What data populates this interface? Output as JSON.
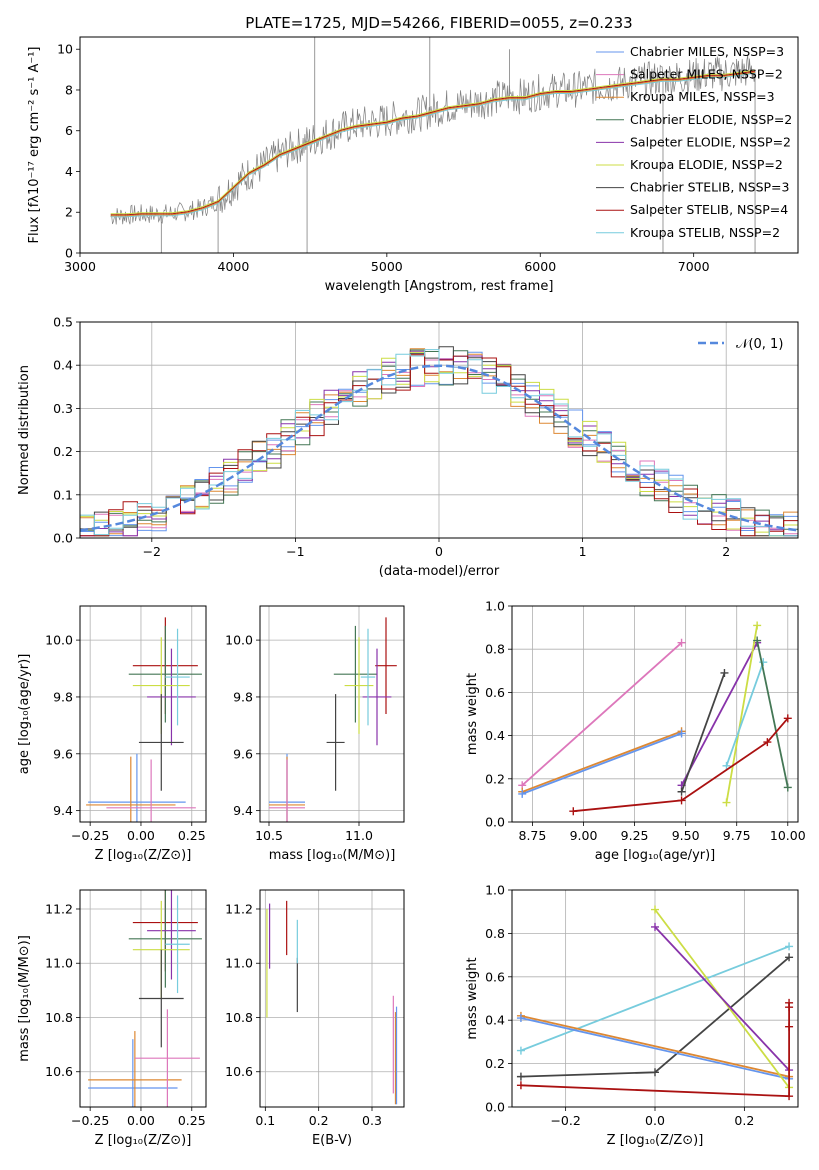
{
  "colors": [
    "#6495ed",
    "#dd77bb",
    "#dd8833",
    "#447755",
    "#8833aa",
    "#ccdd44",
    "#444444",
    "#aa1111",
    "#77ccdd"
  ],
  "chart_data": [
    {
      "id": "spectrum",
      "type": "line",
      "title": "PLATE=1725, MJD=54266, FIBERID=0055, z=0.233",
      "xlabel": "wavelength [Angstrom, rest frame]",
      "ylabel": "Flux [fλ10⁻¹⁷ erg cm⁻² s⁻¹ A⁻¹]",
      "xlim": [
        3000,
        7680
      ],
      "ylim": [
        0,
        10.6
      ],
      "xticks": [
        3000,
        4000,
        5000,
        6000,
        7000
      ],
      "yticks": [
        0,
        2,
        4,
        6,
        8,
        10
      ],
      "grid": false,
      "legend": "upper-right",
      "legend_entries": [
        "Chabrier MILES, NSSP=3",
        "Salpeter MILES, NSSP=2",
        "Kroupa MILES, NSSP=3",
        "Chabrier ELODIE, NSSP=2",
        "Salpeter ELODIE, NSSP=2",
        "Kroupa ELODIE, NSSP=2",
        "Chabrier STELIB, NSSP=3",
        "Salpeter STELIB, NSSP=4",
        "Kroupa STELIB, NSSP=2"
      ],
      "data_color": "#808080",
      "data_x": [
        3200,
        3300,
        3400,
        3500,
        3600,
        3700,
        3800,
        3900,
        4000,
        4100,
        4200,
        4300,
        4400,
        4500,
        4600,
        4700,
        4800,
        4900,
        5000,
        5100,
        5200,
        5300,
        5400,
        5500,
        5600,
        5700,
        5800,
        5900,
        6000,
        6100,
        6200,
        6300,
        6400,
        6500,
        6600,
        6700,
        6800,
        6900,
        7000,
        7100,
        7200,
        7300,
        7400
      ],
      "data_y": [
        1.8,
        1.85,
        1.9,
        1.9,
        1.95,
        2.05,
        2.2,
        2.6,
        3.3,
        3.9,
        4.3,
        4.8,
        5.2,
        5.5,
        5.8,
        6.1,
        6.3,
        6.4,
        6.5,
        6.7,
        6.8,
        7.0,
        7.2,
        7.3,
        7.4,
        7.6,
        7.7,
        7.7,
        7.9,
        8.0,
        8.0,
        8.1,
        8.2,
        8.3,
        8.4,
        8.5,
        8.6,
        8.6,
        8.7,
        8.8,
        8.8,
        8.9,
        9.0
      ],
      "model_colors": [
        "#77ccdd",
        "#dd8833",
        "#aa1111",
        "#ccdd44"
      ],
      "model_y": [
        1.85,
        1.85,
        1.9,
        1.9,
        1.9,
        2.0,
        2.2,
        2.5,
        3.2,
        3.9,
        4.3,
        4.8,
        5.1,
        5.4,
        5.7,
        6.0,
        6.2,
        6.3,
        6.4,
        6.6,
        6.7,
        6.9,
        7.1,
        7.2,
        7.3,
        7.5,
        7.6,
        7.6,
        7.8,
        7.9,
        7.9,
        8.0,
        8.1,
        8.2,
        8.3,
        8.4,
        8.5,
        8.5,
        8.6,
        8.7,
        8.7,
        8.8,
        8.9
      ]
    },
    {
      "id": "residuals",
      "type": "line",
      "xlabel": "(data-model)/error",
      "ylabel": "Normed distribution",
      "xlim": [
        -2.5,
        2.5
      ],
      "ylim": [
        0,
        0.5
      ],
      "xticks": [
        -2,
        -1,
        0,
        1,
        2
      ],
      "yticks": [
        0.0,
        0.1,
        0.2,
        0.3,
        0.4,
        0.5
      ],
      "grid": true,
      "legend": "upper-right",
      "gauss_label": "𝒩(0, 1)",
      "gauss_color": "#5588dd"
    },
    {
      "id": "age-vs-Z",
      "type": "scatter",
      "xlabel": "Z [log₁₀(Z/Z⊙)]",
      "ylabel": "age  [log₁₀(age/yr)]",
      "xlim": [
        -0.3,
        0.32
      ],
      "ylim": [
        9.36,
        10.12
      ],
      "xticks": [
        -0.25,
        0.0,
        0.25
      ],
      "yticks": [
        9.4,
        9.6,
        9.8,
        10.0
      ],
      "grid": true,
      "points": [
        {
          "x": -0.02,
          "y": 9.43,
          "xerr": 0.24,
          "yerr": 0.0,
          "color": "#6495ed"
        },
        {
          "x": -0.05,
          "y": 9.42,
          "xerr": 0.22,
          "yerr": 0.0,
          "color": "#dd8833"
        },
        {
          "x": 0.05,
          "y": 9.41,
          "xerr": 0.22,
          "yerr": 0.0,
          "color": "#dd77bb"
        },
        {
          "x": 0.12,
          "y": 9.91,
          "xerr": 0.16,
          "yerr": 0.0,
          "color": "#aa1111"
        },
        {
          "x": 0.12,
          "y": 9.88,
          "xerr": 0.18,
          "yerr": 0.0,
          "color": "#447755"
        },
        {
          "x": 0.15,
          "y": 9.8,
          "xerr": 0.12,
          "yerr": 0.0,
          "color": "#8833aa"
        },
        {
          "x": 0.1,
          "y": 9.84,
          "xerr": 0.14,
          "yerr": 0.0,
          "color": "#ccdd44"
        },
        {
          "x": 0.18,
          "y": 9.87,
          "xerr": 0.06,
          "yerr": 0.0,
          "color": "#77ccdd"
        },
        {
          "x": 0.1,
          "y": 9.64,
          "xerr": 0.11,
          "yerr": 0.0,
          "color": "#444444"
        }
      ]
    },
    {
      "id": "age-vs-mass",
      "type": "scatter",
      "xlabel": "mass [log₁₀(M/M⊙)]",
      "xlim": [
        10.45,
        11.25
      ],
      "ylim": [
        9.36,
        10.12
      ],
      "xticks": [
        10.5,
        11.0
      ],
      "yticks": [
        9.4,
        9.6,
        9.8,
        10.0
      ],
      "grid": true,
      "points": [
        {
          "x": 10.6,
          "y": 9.43,
          "xerr": 0.1,
          "yerr": 0.0,
          "color": "#6495ed"
        },
        {
          "x": 10.6,
          "y": 9.42,
          "xerr": 0.1,
          "yerr": 0.0,
          "color": "#dd8833"
        },
        {
          "x": 10.6,
          "y": 9.41,
          "xerr": 0.1,
          "yerr": 0.0,
          "color": "#dd77bb"
        },
        {
          "x": 11.15,
          "y": 9.91,
          "xerr": 0.06,
          "yerr": 0.0,
          "color": "#aa1111"
        },
        {
          "x": 10.98,
          "y": 9.88,
          "xerr": 0.12,
          "yerr": 0.0,
          "color": "#447755"
        },
        {
          "x": 11.1,
          "y": 9.8,
          "xerr": 0.08,
          "yerr": 0.0,
          "color": "#8833aa"
        },
        {
          "x": 11.0,
          "y": 9.84,
          "xerr": 0.08,
          "yerr": 0.0,
          "color": "#ccdd44"
        },
        {
          "x": 11.05,
          "y": 9.87,
          "xerr": 0.04,
          "yerr": 0.0,
          "color": "#77ccdd"
        },
        {
          "x": 10.87,
          "y": 9.64,
          "xerr": 0.05,
          "yerr": 0.0,
          "color": "#444444"
        }
      ]
    },
    {
      "id": "weight-vs-age",
      "type": "line",
      "xlabel": "age  [log₁₀(age/yr)]",
      "ylabel": "mass weight",
      "xlim": [
        8.65,
        10.05
      ],
      "ylim": [
        0.0,
        1.0
      ],
      "xticks": [
        8.75,
        9.0,
        9.25,
        9.5,
        9.75,
        10.0
      ],
      "yticks": [
        0.0,
        0.2,
        0.4,
        0.6,
        0.8,
        1.0
      ],
      "grid": true,
      "series": [
        {
          "x": [
            8.7,
            9.48
          ],
          "y": [
            0.17,
            0.83
          ],
          "color": "#dd77bb"
        },
        {
          "x": [
            8.7,
            9.48
          ],
          "y": [
            0.14,
            0.42
          ],
          "color": "#dd8833"
        },
        {
          "x": [
            8.7,
            9.48
          ],
          "y": [
            0.13,
            0.41
          ],
          "color": "#6495ed"
        },
        {
          "x": [
            9.48,
            9.85
          ],
          "y": [
            0.17,
            0.83
          ],
          "color": "#8833aa"
        },
        {
          "x": [
            9.7,
            9.85
          ],
          "y": [
            0.09,
            0.91
          ],
          "color": "#ccdd44"
        },
        {
          "x": [
            9.48,
            9.69
          ],
          "y": [
            0.14,
            0.69
          ],
          "color": "#444444"
        },
        {
          "x": [
            9.7,
            9.88
          ],
          "y": [
            0.26,
            0.74
          ],
          "color": "#77ccdd"
        },
        {
          "x": [
            9.85,
            10.0
          ],
          "y": [
            0.84,
            0.16
          ],
          "color": "#447755"
        },
        {
          "x": [
            8.95,
            9.48,
            9.9,
            10.0
          ],
          "y": [
            0.05,
            0.1,
            0.37,
            0.48
          ],
          "color": "#aa1111"
        }
      ]
    },
    {
      "id": "mass-vs-Z",
      "type": "scatter",
      "xlabel": "Z [log₁₀(Z/Z⊙)]",
      "ylabel": "mass [log₁₀(M/M⊙)]",
      "xlim": [
        -0.3,
        0.32
      ],
      "ylim": [
        10.47,
        11.27
      ],
      "xticks": [
        -0.25,
        0.0,
        0.25
      ],
      "yticks": [
        10.6,
        10.8,
        11.0,
        11.2
      ],
      "grid": true,
      "points": [
        {
          "x": -0.04,
          "y": 10.54,
          "xerr": 0.22,
          "yerr": 0.0,
          "color": "#6495ed"
        },
        {
          "x": -0.03,
          "y": 10.57,
          "xerr": 0.23,
          "yerr": 0.0,
          "color": "#dd8833"
        },
        {
          "x": 0.13,
          "y": 10.65,
          "xerr": 0.16,
          "yerr": 0.0,
          "color": "#dd77bb"
        },
        {
          "x": 0.12,
          "y": 11.15,
          "xerr": 0.16,
          "yerr": 0.0,
          "color": "#aa1111"
        },
        {
          "x": 0.12,
          "y": 11.09,
          "xerr": 0.18,
          "yerr": 0.0,
          "color": "#447755"
        },
        {
          "x": 0.15,
          "y": 11.12,
          "xerr": 0.12,
          "yerr": 0.0,
          "color": "#8833aa"
        },
        {
          "x": 0.1,
          "y": 11.05,
          "xerr": 0.14,
          "yerr": 0.0,
          "color": "#ccdd44"
        },
        {
          "x": 0.18,
          "y": 11.07,
          "xerr": 0.06,
          "yerr": 0.0,
          "color": "#77ccdd"
        },
        {
          "x": 0.1,
          "y": 10.87,
          "xerr": 0.11,
          "yerr": 0.0,
          "color": "#444444"
        }
      ]
    },
    {
      "id": "mass-vs-EBV",
      "type": "scatter",
      "xlabel": "E(B-V)",
      "xlim": [
        0.09,
        0.36
      ],
      "ylim": [
        10.47,
        11.27
      ],
      "xticks": [
        0.1,
        0.2,
        0.3
      ],
      "yticks": [
        10.6,
        10.8,
        11.0,
        11.2
      ],
      "grid": true,
      "points": [
        {
          "x": 0.103,
          "y": 11.0,
          "yerr": 0.2,
          "color": "#ccdd44"
        },
        {
          "x": 0.108,
          "y": 11.1,
          "yerr": 0.12,
          "color": "#8833aa"
        },
        {
          "x": 0.14,
          "y": 11.13,
          "yerr": 0.1,
          "color": "#aa1111"
        },
        {
          "x": 0.16,
          "y": 10.92,
          "yerr": 0.1,
          "color": "#444444"
        },
        {
          "x": 0.16,
          "y": 11.08,
          "yerr": 0.08,
          "color": "#77ccdd"
        },
        {
          "x": 0.34,
          "y": 10.7,
          "yerr": 0.18,
          "color": "#dd77bb"
        },
        {
          "x": 0.344,
          "y": 10.65,
          "yerr": 0.17,
          "color": "#dd8833"
        },
        {
          "x": 0.346,
          "y": 10.66,
          "yerr": 0.18,
          "color": "#6495ed"
        }
      ]
    },
    {
      "id": "weight-vs-Z",
      "type": "line",
      "xlabel": "Z [log₁₀(Z/Z⊙)]",
      "ylabel": "mass weight",
      "xlim": [
        -0.32,
        0.32
      ],
      "ylim": [
        0.0,
        1.0
      ],
      "xticks": [
        -0.2,
        0.0,
        0.2
      ],
      "yticks": [
        0.0,
        0.2,
        0.4,
        0.6,
        0.8,
        1.0
      ],
      "grid": true,
      "series": [
        {
          "x": [
            -0.3,
            0.3
          ],
          "y": [
            0.26,
            0.74
          ],
          "color": "#77ccdd"
        },
        {
          "x": [
            -0.3,
            0.0,
            0.3
          ],
          "y": [
            0.14,
            0.16,
            0.69
          ],
          "color": "#444444"
        },
        {
          "x": [
            -0.3,
            0.3
          ],
          "y": [
            0.42,
            0.14
          ],
          "color": "#dd8833"
        },
        {
          "x": [
            -0.3,
            0.3
          ],
          "y": [
            0.41,
            0.13
          ],
          "color": "#6495ed"
        },
        {
          "x": [
            0.0,
            0.3
          ],
          "y": [
            0.91,
            0.09
          ],
          "color": "#ccdd44"
        },
        {
          "x": [
            0.0,
            0.3
          ],
          "y": [
            0.83,
            0.17
          ],
          "color": "#8833aa"
        },
        {
          "x": [
            -0.3,
            0.3,
            0.3,
            0.3,
            0.3
          ],
          "y": [
            0.1,
            0.05,
            0.37,
            0.48,
            0.46
          ],
          "color": "#aa1111"
        }
      ]
    }
  ]
}
